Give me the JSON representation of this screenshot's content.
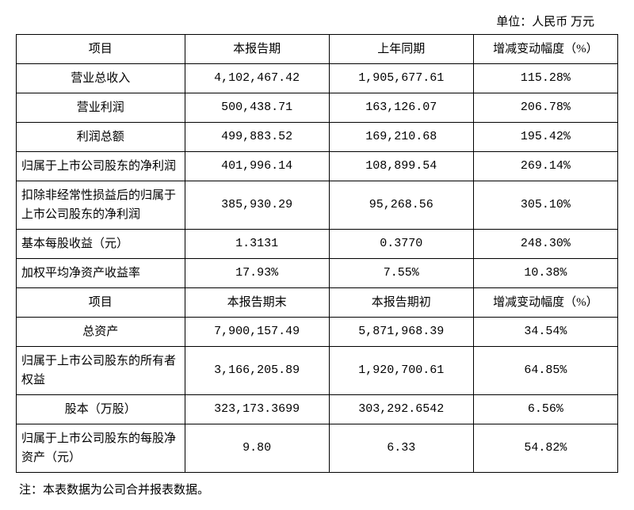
{
  "unit_label": "单位：人民币 万元",
  "table": {
    "header1": {
      "c0": "项目",
      "c1": "本报告期",
      "c2": "上年同期",
      "c3": "增减变动幅度（%）"
    },
    "rows1": [
      {
        "label": "营业总收入",
        "v1": "4,102,467.42",
        "v2": "1,905,677.61",
        "pct": "115.28%",
        "align": "center"
      },
      {
        "label": "营业利润",
        "v1": "500,438.71",
        "v2": "163,126.07",
        "pct": "206.78%",
        "align": "center"
      },
      {
        "label": "利润总额",
        "v1": "499,883.52",
        "v2": "169,210.68",
        "pct": "195.42%",
        "align": "center"
      },
      {
        "label": "归属于上市公司股东的净利润",
        "v1": "401,996.14",
        "v2": "108,899.54",
        "pct": "269.14%",
        "align": "left"
      },
      {
        "label": "扣除非经常性损益后的归属于上市公司股东的净利润",
        "v1": "385,930.29",
        "v2": "95,268.56",
        "pct": "305.10%",
        "align": "left"
      },
      {
        "label": "基本每股收益（元）",
        "v1": "1.3131",
        "v2": "0.3770",
        "pct": "248.30%",
        "align": "left"
      },
      {
        "label": "加权平均净资产收益率",
        "v1": "17.93%",
        "v2": "7.55%",
        "pct": "10.38%",
        "align": "left"
      }
    ],
    "header2": {
      "c0": "项目",
      "c1": "本报告期末",
      "c2": "本报告期初",
      "c3": "增减变动幅度（%）"
    },
    "rows2": [
      {
        "label": "总资产",
        "v1": "7,900,157.49",
        "v2": "5,871,968.39",
        "pct": "34.54%",
        "align": "center"
      },
      {
        "label": "归属于上市公司股东的所有者权益",
        "v1": "3,166,205.89",
        "v2": "1,920,700.61",
        "pct": "64.85%",
        "align": "left"
      },
      {
        "label": "股本（万股）",
        "v1": "323,173.3699",
        "v2": "303,292.6542",
        "pct": "6.56%",
        "align": "center"
      },
      {
        "label": "归属于上市公司股东的每股净资产（元）",
        "v1": "9.80",
        "v2": "6.33",
        "pct": "54.82%",
        "align": "left"
      }
    ]
  },
  "footnote": "注：本表数据为公司合并报表数据。",
  "styling": {
    "border_color": "#000000",
    "background_color": "#ffffff",
    "text_color": "#000000",
    "font_size_pt": 15,
    "col_widths_pct": [
      28,
      24,
      24,
      24
    ]
  }
}
